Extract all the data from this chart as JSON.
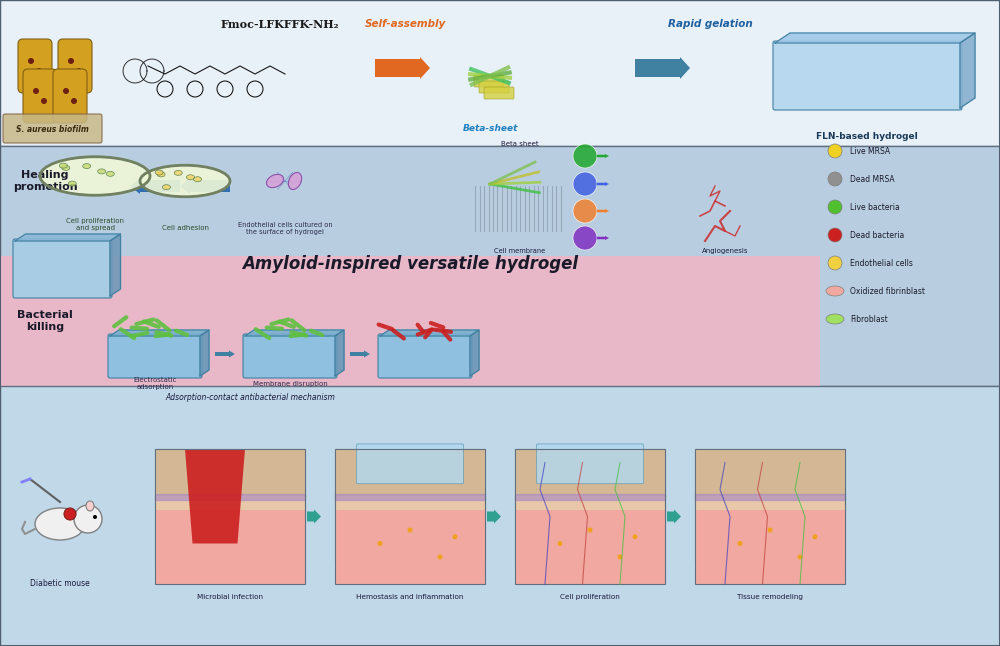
{
  "title": "Amyloid-inspired versatile hydrogel",
  "bg_top": "#d6e8f5",
  "bg_mid_blue": "#b8d4e8",
  "bg_mid_pink": "#f0c8d0",
  "bg_bottom": "#c8dce8",
  "top_label": "Fmoc-LFKFFK-NH₂",
  "self_assembly_label": "Self-assembly",
  "rapid_gelation_label": "Rapid gelation",
  "fln_label": "FLN-based hydrogel",
  "beta_sheet_label": "Beta-sheet",
  "s_aureus_label": "S. aureus biofilm",
  "healing_label": "Healing\npromotion",
  "bacterial_label": "Bacterial\nkilling",
  "adsorption_label": "Adsorption-contact antibacterial mechanism",
  "cell_prolif_label": "Cell proliferation\nand spread",
  "cell_adhesion_label": "Cell adhesion",
  "endothelial_label": "Endothelial cells cultured on\nthe surface of hydrogel",
  "cell_membrane_label": "Cell membrane",
  "angiogenesis_label": "Angiogenesis",
  "electrostatic_label": "Electrostatic\nadsorption",
  "membrane_disruption_label": "Membrane disruption",
  "diabetic_label": "Diabetic mouse",
  "microbial_label": "Microbial infection",
  "hemostasis_label": "Hemostasis and inflammation",
  "cell_prolif2_label": "Cell proliferation",
  "tissue_label": "Tissue remodeling",
  "legend_items": [
    {
      "label": "Live MRSA",
      "color": "#f0d020"
    },
    {
      "label": "Dead MRSA",
      "color": "#909090"
    },
    {
      "label": "Live bacteria",
      "color": "#50c030"
    },
    {
      "label": "Dead bacteria",
      "color": "#cc2020"
    },
    {
      "label": "Endothelial cells",
      "color": "#f0d040"
    },
    {
      "label": "Oxidized fibrinblast",
      "color": "#f0a8a0"
    },
    {
      "label": "Fibroblast",
      "color": "#a0e060"
    }
  ],
  "orange_arrow_color": "#e06820",
  "blue_arrow_color": "#4080a0",
  "teal_arrow_color": "#30a090",
  "border_color": "#607080"
}
